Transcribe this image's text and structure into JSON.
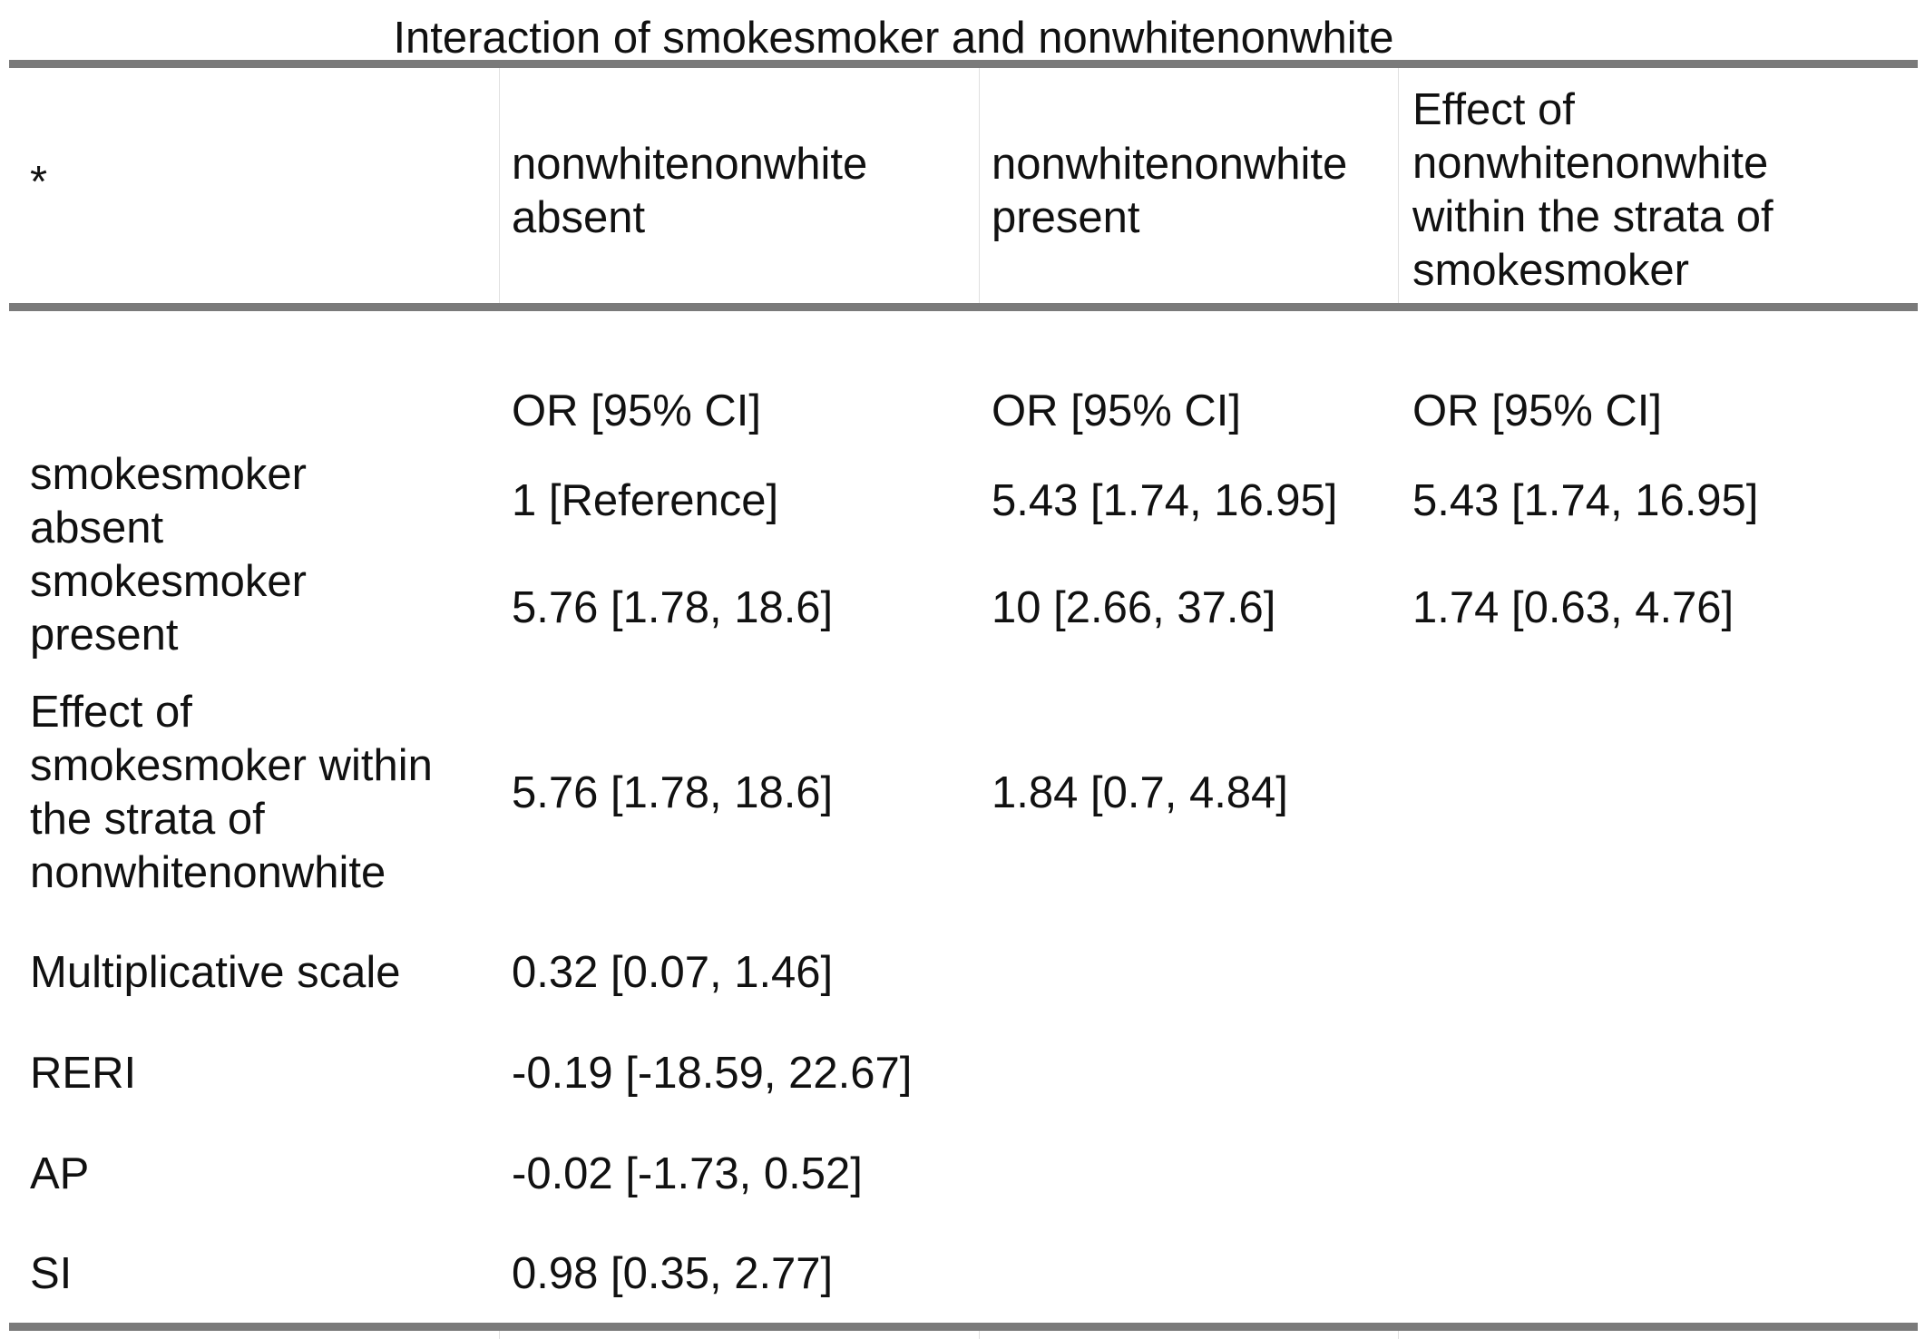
{
  "table": {
    "caption": "Interaction of smokesmoker and nonwhitenonwhite",
    "header": {
      "corner": "*",
      "col1": [
        "nonwhitenonwhite",
        "absent"
      ],
      "col2": [
        "nonwhitenonwhite",
        "present"
      ],
      "col3": [
        "Effect of",
        "nonwhitenonwhite",
        "within the strata of",
        "smokesmoker"
      ]
    },
    "measure_row": {
      "col1": "OR [95% CI]",
      "col2": "OR [95% CI]",
      "col3": "OR [95% CI]"
    },
    "rows": [
      {
        "label": [
          "smokesmoker",
          "absent"
        ],
        "col1": "1 [Reference]",
        "col2": "5.43 [1.74, 16.95]",
        "col3": "5.43 [1.74, 16.95]"
      },
      {
        "label": [
          "smokesmoker",
          "present"
        ],
        "col1": "5.76 [1.78, 18.6]",
        "col2": "10 [2.66, 37.6]",
        "col3": "1.74 [0.63, 4.76]"
      },
      {
        "label": [
          "Effect of",
          "smokesmoker within",
          "the strata of",
          "nonwhitenonwhite"
        ],
        "col1": "5.76 [1.78, 18.6]",
        "col2": "1.84 [0.7, 4.84]",
        "col3": ""
      },
      {
        "label": [
          "Multiplicative scale"
        ],
        "col1": "0.32 [0.07, 1.46]",
        "col2": "",
        "col3": ""
      },
      {
        "label": [
          "RERI"
        ],
        "col1": "-0.19 [-18.59, 22.67]",
        "col2": "",
        "col3": ""
      },
      {
        "label": [
          "AP"
        ],
        "col1": "-0.02 [-1.73, 0.52]",
        "col2": "",
        "col3": ""
      },
      {
        "label": [
          "SI"
        ],
        "col1": "0.98 [0.35, 2.77]",
        "col2": "",
        "col3": ""
      }
    ]
  }
}
